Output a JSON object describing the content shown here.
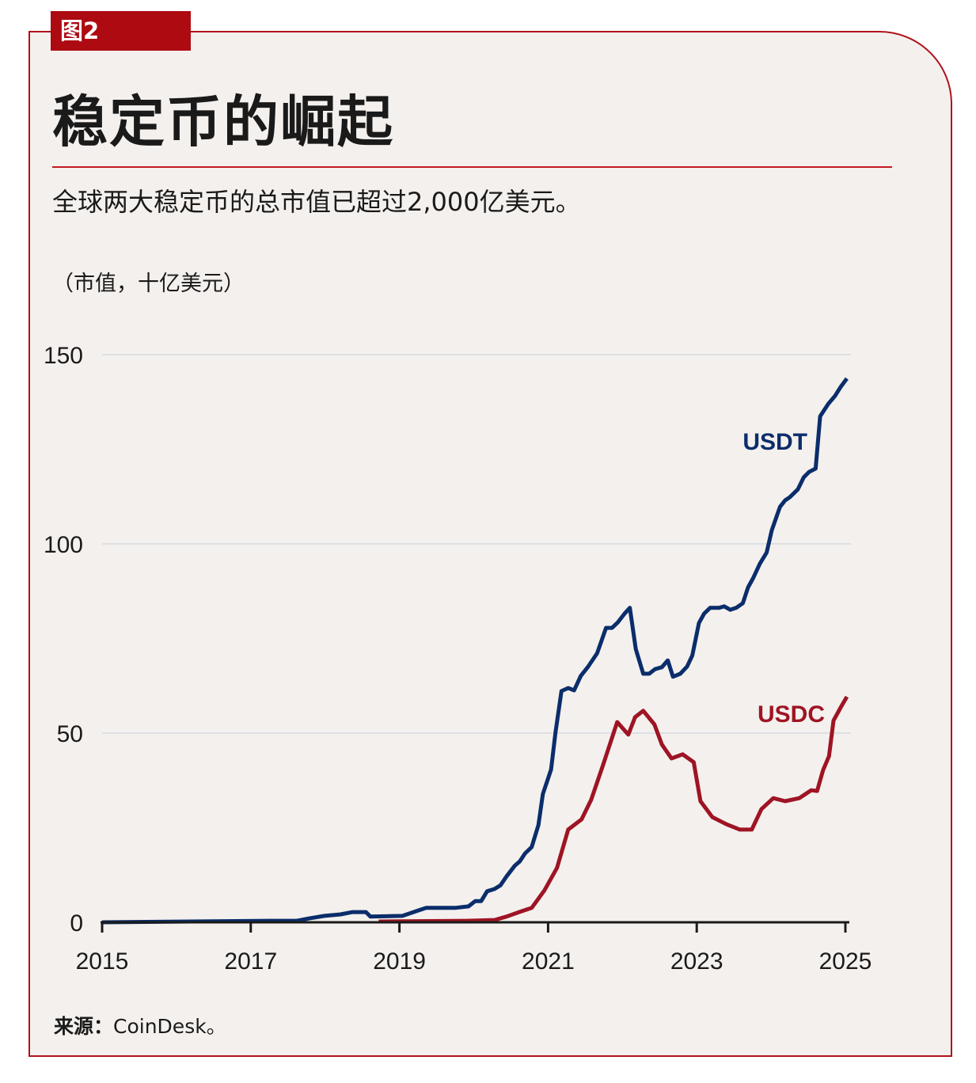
{
  "figure_tag": "图2",
  "title": "稳定币的崛起",
  "subtitle": "全球两大稳定币的总市值已超过2,000亿美元。",
  "source_label": "来源：",
  "source_value": "CoinDesk。",
  "colors": {
    "accent": "#ad0a12",
    "usdt": "#0b2d6b",
    "usdc": "#9e1424",
    "background": "#f4f0ed"
  },
  "chart_data": {
    "type": "line",
    "ylabel": "（市值，十亿美元）",
    "xlim": [
      2015,
      2025
    ],
    "ylim": [
      0,
      150
    ],
    "x_ticks": [
      "2015",
      "2017",
      "2019",
      "2021",
      "2023",
      "2025"
    ],
    "y_ticks": [
      "0",
      "50",
      "100",
      "150"
    ],
    "grid": true,
    "series": [
      {
        "name": "USDT",
        "x": [
          2015.0,
          2017.25,
          2017.62,
          2017.78,
          2017.99,
          2018.21,
          2018.37,
          2018.55,
          2018.61,
          2019.04,
          2019.22,
          2019.36,
          2019.75,
          2019.93,
          2020.02,
          2020.1,
          2020.18,
          2020.28,
          2020.36,
          2020.44,
          2020.55,
          2020.62,
          2020.69,
          2020.78,
          2020.87,
          2020.93,
          2021.04,
          2021.1,
          2021.18,
          2021.27,
          2021.35,
          2021.44,
          2021.54,
          2021.66,
          2021.78,
          2021.86,
          2021.94,
          2022.03,
          2022.1,
          2022.18,
          2022.28,
          2022.36,
          2022.44,
          2022.53,
          2022.61,
          2022.68,
          2022.78,
          2022.87,
          2022.94,
          2023.03,
          2023.1,
          2023.18,
          2023.3,
          2023.37,
          2023.45,
          2023.53,
          2023.62,
          2023.69,
          2023.76,
          2023.85,
          2023.94,
          2024.01,
          2024.12,
          2024.19,
          2024.25,
          2024.36,
          2024.44,
          2024.51,
          2024.6,
          2024.66,
          2024.77,
          2024.86,
          2024.94,
          2025.02
        ],
        "y": [
          0,
          0.4,
          0.4,
          1.0,
          1.7,
          2.1,
          2.7,
          2.7,
          1.5,
          1.7,
          2.9,
          3.8,
          3.8,
          4.2,
          5.6,
          5.6,
          8.2,
          8.8,
          9.8,
          12.1,
          14.9,
          16.1,
          18.2,
          19.9,
          25.7,
          33.9,
          40.4,
          50.2,
          61.1,
          61.9,
          61.3,
          65.1,
          67.6,
          71.1,
          77.8,
          77.8,
          79.3,
          81.6,
          83.1,
          72.2,
          65.7,
          65.7,
          66.9,
          67.4,
          69.2,
          64.9,
          65.7,
          67.6,
          70.5,
          79.1,
          81.6,
          83.1,
          83.1,
          83.5,
          82.6,
          83.1,
          84.3,
          88.5,
          91.0,
          94.8,
          97.7,
          103.6,
          109.8,
          111.5,
          112.3,
          114.4,
          117.6,
          119.0,
          119.9,
          133.7,
          137.0,
          139.1,
          141.6,
          143.7
        ]
      },
      {
        "name": "USDC",
        "x": [
          2018.72,
          2019.91,
          2020.28,
          2020.44,
          2020.61,
          2020.78,
          2020.95,
          2021.12,
          2021.27,
          2021.45,
          2021.58,
          2021.74,
          2021.93,
          2022.08,
          2022.17,
          2022.28,
          2022.43,
          2022.53,
          2022.66,
          2022.81,
          2022.96,
          2023.05,
          2023.21,
          2023.4,
          2023.58,
          2023.74,
          2023.87,
          2024.03,
          2024.19,
          2024.38,
          2024.54,
          2024.62,
          2024.7,
          2024.78,
          2024.84,
          2024.94,
          2025.02
        ],
        "y": [
          0.2,
          0.4,
          0.6,
          1.5,
          2.7,
          3.8,
          8.4,
          14.4,
          24.5,
          27.2,
          32.4,
          41.6,
          52.9,
          49.6,
          54.2,
          55.9,
          52.3,
          47.0,
          43.3,
          44.4,
          42.3,
          32.0,
          27.8,
          25.9,
          24.5,
          24.5,
          29.9,
          32.8,
          32.0,
          32.8,
          34.9,
          34.7,
          40.2,
          43.9,
          53.3,
          56.9,
          59.6
        ]
      }
    ]
  }
}
